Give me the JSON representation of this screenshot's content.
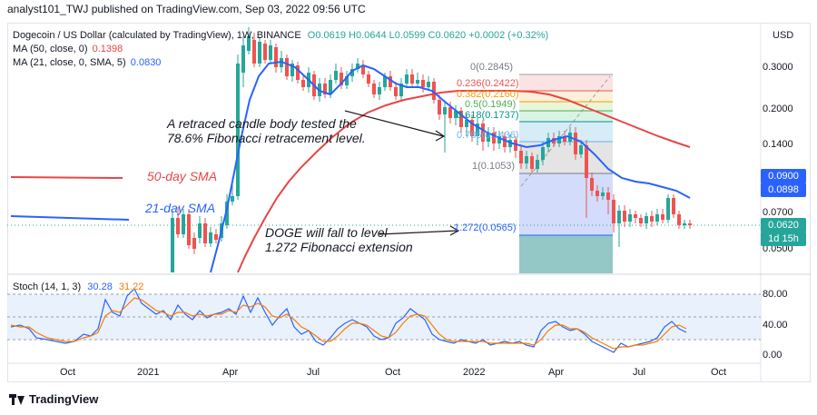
{
  "header": {
    "published_line": "analyst101_TWJ published on TradingView.com, Sep 03, 2022 09:56 UTC"
  },
  "legend": {
    "symbol": "Dogecoin / US Dollar (calculated by TradingView), 1W, BINANCE",
    "ohlc": "O0.0619 H0.0644 L0.0599 C0.0620 +0.0002 (+0.32%)",
    "ma50_label": "MA (50, close, 0)",
    "ma50_value": "0.1398",
    "ma21_label": "MA (21, close, 0, SMA, 5)",
    "ma21_value": "0.0830",
    "stoch_label": "Stoch (14, 1, 3)",
    "stoch_k": "30.28",
    "stoch_d": "31.22"
  },
  "colors": {
    "ma50": "#e84545",
    "ma21": "#2962ff",
    "stoch_k": "#2962ff",
    "stoch_d": "#f57c00",
    "up": "#26a69a",
    "down": "#ef5350",
    "last_price": "#26a69a",
    "ma50_tag": "#2962ff",
    "ma21_tag": "#2962ff"
  },
  "axis": {
    "currency": "USD",
    "price_ticks": [
      "0.3000",
      "0.2000",
      "0.1400",
      "0.0700",
      "0.0500"
    ],
    "ma50_tag": "0.0900",
    "ma21_tag": "0.0898",
    "last_price": "0.0620",
    "countdown": "1d 15h",
    "stoch_ticks": [
      "80.00",
      "40.00",
      "0.00"
    ],
    "time_ticks": [
      "Oct",
      "2021",
      "Apr",
      "Jul",
      "Oct",
      "2022",
      "Apr",
      "Jul",
      "Oct"
    ]
  },
  "fibonacci": [
    {
      "label": "0(0.2845)"
    },
    {
      "label": "0.236(0.2422)"
    },
    {
      "label": "0.382(0.2160)"
    },
    {
      "label": "0.5(0.1949)"
    },
    {
      "label": "0.618(0.1737)"
    },
    {
      "label": "0.786(0.1436)"
    },
    {
      "label": "1(0.1053)"
    },
    {
      "label": "1.272(0.0565)"
    }
  ],
  "annotations": {
    "retrace_line1": "A retraced candle body tested the",
    "retrace_line2": "78.6% Fibonacci retracement level.",
    "fall_line1": "DOGE will fall to level",
    "fall_line2": "1.272 Fibonacci extension",
    "sma50": "50-day SMA",
    "sma21": "21-day SMA"
  },
  "footer": {
    "brand": "TradingView"
  }
}
